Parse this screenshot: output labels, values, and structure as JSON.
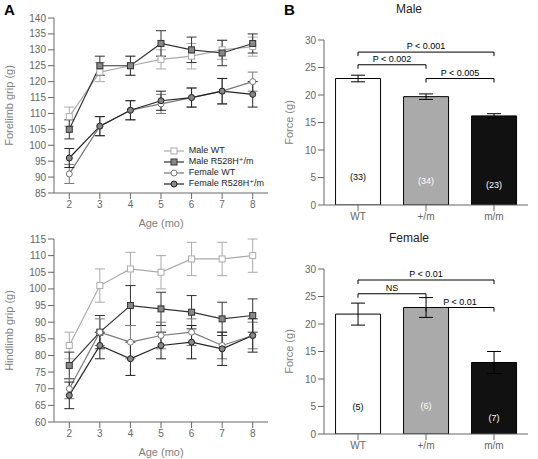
{
  "chart_data": [
    {
      "type": "line",
      "panel_label": "A",
      "xlabel": "Age (mo)",
      "ylabel": "Forelimb grip (g)",
      "x": [
        2,
        3,
        4,
        5,
        6,
        7,
        8
      ],
      "xlim": [
        1.5,
        8.5
      ],
      "xticks": [
        2,
        3,
        4,
        5,
        6,
        7,
        8
      ],
      "ylim": [
        85,
        140
      ],
      "yticks": [
        85,
        90,
        95,
        100,
        105,
        110,
        115,
        120,
        125,
        130,
        135,
        140
      ],
      "legend": "lower right",
      "series": [
        {
          "name": "Male WT",
          "color": "#aaaaaa",
          "marker": "square-open",
          "values": [
            109,
            123,
            125,
            127,
            128,
            130,
            131
          ],
          "errors": [
            3,
            3,
            3,
            3,
            4,
            3,
            3
          ]
        },
        {
          "name": "Male R528H⁺/m",
          "color": "#333333",
          "marker": "square-filled",
          "values": [
            105,
            125,
            125,
            132,
            130,
            129,
            132
          ],
          "errors": [
            3,
            3,
            3,
            4,
            4,
            4,
            3
          ]
        },
        {
          "name": "Female WT",
          "color": "#777777",
          "marker": "circle-open",
          "values": [
            91,
            106,
            111,
            113,
            115,
            117,
            120
          ],
          "errors": [
            3,
            3,
            3,
            3,
            3,
            4,
            3
          ]
        },
        {
          "name": "Female R528H⁺/m",
          "color": "#222222",
          "marker": "circle-filled",
          "values": [
            96,
            106,
            111,
            114,
            115,
            117,
            116
          ],
          "errors": [
            3,
            3,
            3,
            3,
            3,
            4,
            4
          ]
        }
      ]
    },
    {
      "type": "line",
      "xlabel": "Age (mo)",
      "ylabel": "Hindlimb grip (g)",
      "x": [
        2,
        3,
        4,
        5,
        6,
        7,
        8
      ],
      "xlim": [
        1.5,
        8.5
      ],
      "xticks": [
        2,
        3,
        4,
        5,
        6,
        7,
        8
      ],
      "ylim": [
        60,
        115
      ],
      "yticks": [
        60,
        65,
        70,
        75,
        80,
        85,
        90,
        95,
        100,
        105,
        110,
        115
      ],
      "series": [
        {
          "name": "Male WT",
          "color": "#aaaaaa",
          "marker": "square-open",
          "values": [
            83,
            101,
            106,
            105,
            109,
            109,
            110
          ],
          "errors": [
            4,
            5,
            5,
            5,
            5,
            5,
            5
          ]
        },
        {
          "name": "Male R528H⁺/m",
          "color": "#333333",
          "marker": "square-filled",
          "values": [
            77,
            87,
            95,
            94,
            93,
            91,
            92
          ],
          "errors": [
            4,
            5,
            6,
            5,
            5,
            5,
            5
          ]
        },
        {
          "name": "Female WT",
          "color": "#777777",
          "marker": "circle-open",
          "values": [
            70,
            87,
            84,
            86,
            87,
            83,
            86
          ],
          "errors": [
            3,
            4,
            5,
            4,
            4,
            4,
            4
          ]
        },
        {
          "name": "Female R528H⁺/m",
          "color": "#222222",
          "marker": "circle-filled",
          "values": [
            68,
            83,
            79,
            83,
            84,
            82,
            86
          ],
          "errors": [
            4,
            4,
            5,
            4,
            5,
            5,
            5
          ]
        }
      ]
    },
    {
      "type": "bar",
      "panel_label": "B",
      "title": "Male",
      "ylabel": "Force (g)",
      "categories": [
        "WT",
        "+/m",
        "m/m"
      ],
      "values": [
        23.0,
        19.7,
        16.2
      ],
      "errors": [
        0.6,
        0.5,
        0.4
      ],
      "colors": [
        "white",
        "#aaaaaa",
        "#111111"
      ],
      "bar_labels": [
        "(33)",
        "(34)",
        "(23)"
      ],
      "ylim": [
        0,
        30
      ],
      "yticks": [
        0,
        5,
        10,
        15,
        20,
        25,
        30
      ],
      "annotations": [
        {
          "text": "P < 0.002",
          "x1": "WT",
          "x2": "+/m",
          "y": 25.5
        },
        {
          "text": "P < 0.001",
          "x1": "WT",
          "x2": "m/m",
          "y": 27.8
        },
        {
          "text": "P < 0.005",
          "x1": "+/m",
          "x2": "m/m",
          "y": 23.0
        }
      ]
    },
    {
      "type": "bar",
      "title": "Female",
      "ylabel": "Force (g)",
      "categories": [
        "WT",
        "+/m",
        "m/m"
      ],
      "values": [
        21.8,
        23.0,
        13.0
      ],
      "errors": [
        2.0,
        1.8,
        2.0
      ],
      "colors": [
        "white",
        "#aaaaaa",
        "#111111"
      ],
      "bar_labels": [
        "(5)",
        "(6)",
        "(7)"
      ],
      "ylim": [
        0,
        30
      ],
      "yticks": [
        0,
        5,
        10,
        15,
        20,
        25,
        30
      ],
      "annotations": [
        {
          "text": "NS",
          "x1": "WT",
          "x2": "+/m",
          "y": 25.5
        },
        {
          "text": "P < 0.01",
          "x1": "WT",
          "x2": "m/m",
          "y": 28.0
        },
        {
          "text": "P < 0.01",
          "x1": "+/m",
          "x2": "m/m",
          "y": 23.0
        }
      ]
    }
  ]
}
